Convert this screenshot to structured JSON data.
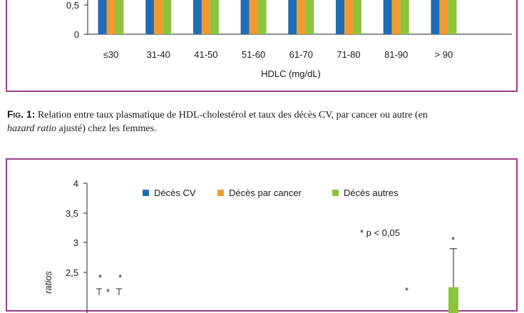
{
  "colors": {
    "frame": "#9c3c8c",
    "cv": "#1f6db5",
    "cancer": "#f29a2e",
    "autres": "#8cc43c"
  },
  "chart_data": [
    {
      "type": "bar",
      "categories": [
        "≤30",
        "31-40",
        "41-50",
        "51-60",
        "61-70",
        "71-80",
        "81-90",
        "> 90"
      ],
      "y_ticks": [
        "0,5",
        "0"
      ],
      "xlabel": "HDLC (mg/dL)",
      "ylim": [
        0,
        0.6
      ]
    },
    {
      "type": "bar",
      "y_ticks": [
        "4",
        "3,5",
        "3",
        "2,5"
      ],
      "ylim": [
        2.0,
        4.0
      ],
      "ylabel_fragment": "ratios",
      "legend": [
        "Décès CV",
        "Décès par cancer",
        "Décès autres"
      ],
      "legend_position": "top",
      "annotation": "* p < 0,05",
      "star": "*",
      "visible_error_bar": {
        "mean": 2.25,
        "upper": 2.9
      }
    }
  ],
  "caption": {
    "fig_label": "Fig. 1:",
    "text1": " Relation entre taux plasmatique de HDL-cholestérol et taux des décès CV, par cancer ou autre (en",
    "italic": "hazard ratio",
    "text2": " ajusté) chez les femmes."
  }
}
